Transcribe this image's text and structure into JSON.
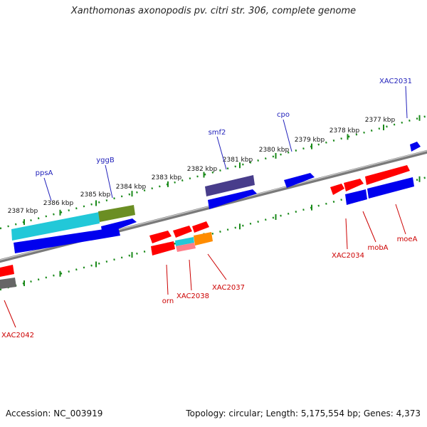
{
  "title": "Xanthomonas axonopodis pv. citri str. 306, complete genome",
  "footer": {
    "accession": "Accession: NC_003919",
    "summary": "Topology: circular; Length: 5,175,554 bp; Genes: 4,373"
  },
  "colors": {
    "axis": "#808080",
    "ticks": "#1a8a1a",
    "red": "#ff0000",
    "blue": "#0000ee",
    "cyan": "#22c8d8",
    "olive": "#6b8e23",
    "purple": "#483d8b",
    "orange": "#ff8c00",
    "pink": "#ff7f8a",
    "gray": "#666666",
    "label_top": "#2222bb",
    "label_bottom": "#cc0000"
  },
  "kbp_labels": [
    "2377 kbp",
    "2378 kbp",
    "2379 kbp",
    "2380 kbp",
    "2381 kbp",
    "2382 kbp",
    "2383 kbp",
    "2384 kbp",
    "2385 kbp",
    "2386 kbp",
    "2387 kbp"
  ],
  "genes_top": [
    {
      "name": "XAC2031"
    },
    {
      "name": "cpo"
    },
    {
      "name": "smf2"
    },
    {
      "name": "yggB"
    },
    {
      "name": "ppsA"
    }
  ],
  "genes_bottom": [
    {
      "name": "moeA"
    },
    {
      "name": "mobA"
    },
    {
      "name": "XAC2034"
    },
    {
      "name": "XAC2037"
    },
    {
      "name": "XAC2038"
    },
    {
      "name": "orn"
    },
    {
      "name": "XAC2042"
    }
  ]
}
